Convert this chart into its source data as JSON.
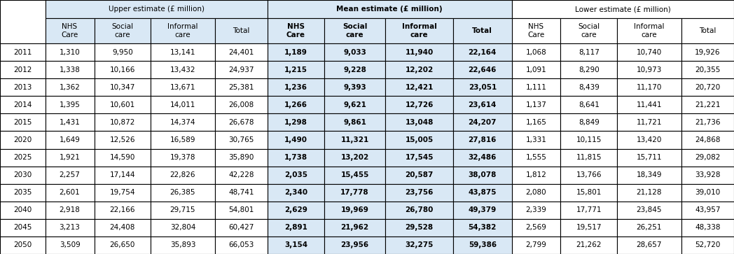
{
  "years": [
    "2011",
    "2012",
    "2013",
    "2014",
    "2015",
    "2020",
    "2025",
    "2030",
    "2035",
    "2040",
    "2045",
    "2050"
  ],
  "upper": [
    [
      "1,310",
      "9,950",
      "13,141",
      "24,401"
    ],
    [
      "1,338",
      "10,166",
      "13,432",
      "24,937"
    ],
    [
      "1,362",
      "10,347",
      "13,671",
      "25,381"
    ],
    [
      "1,395",
      "10,601",
      "14,011",
      "26,008"
    ],
    [
      "1,431",
      "10,872",
      "14,374",
      "26,678"
    ],
    [
      "1,649",
      "12,526",
      "16,589",
      "30,765"
    ],
    [
      "1,921",
      "14,590",
      "19,378",
      "35,890"
    ],
    [
      "2,257",
      "17,144",
      "22,826",
      "42,228"
    ],
    [
      "2,601",
      "19,754",
      "26,385",
      "48,741"
    ],
    [
      "2,918",
      "22,166",
      "29,715",
      "54,801"
    ],
    [
      "3,213",
      "24,408",
      "32,804",
      "60,427"
    ],
    [
      "3,509",
      "26,650",
      "35,893",
      "66,053"
    ]
  ],
  "mean": [
    [
      "1,189",
      "9,033",
      "11,940",
      "22,164"
    ],
    [
      "1,215",
      "9,228",
      "12,202",
      "22,646"
    ],
    [
      "1,236",
      "9,393",
      "12,421",
      "23,051"
    ],
    [
      "1,266",
      "9,621",
      "12,726",
      "23,614"
    ],
    [
      "1,298",
      "9,861",
      "13,048",
      "24,207"
    ],
    [
      "1,490",
      "11,321",
      "15,005",
      "27,816"
    ],
    [
      "1,738",
      "13,202",
      "17,545",
      "32,486"
    ],
    [
      "2,035",
      "15,455",
      "20,587",
      "38,078"
    ],
    [
      "2,340",
      "17,778",
      "23,756",
      "43,875"
    ],
    [
      "2,629",
      "19,969",
      "26,780",
      "49,379"
    ],
    [
      "2,891",
      "21,962",
      "29,528",
      "54,382"
    ],
    [
      "3,154",
      "23,956",
      "32,275",
      "59,386"
    ]
  ],
  "lower": [
    [
      "1,068",
      "8,117",
      "10,740",
      "19,926"
    ],
    [
      "1,091",
      "8,290",
      "10,973",
      "20,355"
    ],
    [
      "1,111",
      "8,439",
      "11,170",
      "20,720"
    ],
    [
      "1,137",
      "8,641",
      "11,441",
      "21,221"
    ],
    [
      "1,165",
      "8,849",
      "11,721",
      "21,736"
    ],
    [
      "1,331",
      "10,115",
      "13,420",
      "24,868"
    ],
    [
      "1,555",
      "11,815",
      "15,711",
      "29,082"
    ],
    [
      "1,812",
      "13,766",
      "18,349",
      "33,928"
    ],
    [
      "2,080",
      "15,801",
      "21,128",
      "39,010"
    ],
    [
      "2,339",
      "17,771",
      "23,845",
      "43,957"
    ],
    [
      "2,569",
      "19,517",
      "26,251",
      "48,338"
    ],
    [
      "2,799",
      "21,262",
      "28,657",
      "52,720"
    ]
  ],
  "header1_upper": "Upper estimate (£ million)",
  "header1_mean": "Mean estimate (£ million)",
  "header1_lower": "Lower estimate (£ million)",
  "header2_cols": [
    "NHS\nCare",
    "Social\ncare",
    "Informal\ncare",
    "Total"
  ],
  "mean_bg": "#d9e8f5",
  "upper_bg": "#ffffff",
  "lower_bg": "#ffffff",
  "border_color": "#000000",
  "fig_w": 10.48,
  "fig_h": 3.63,
  "dpi": 100
}
